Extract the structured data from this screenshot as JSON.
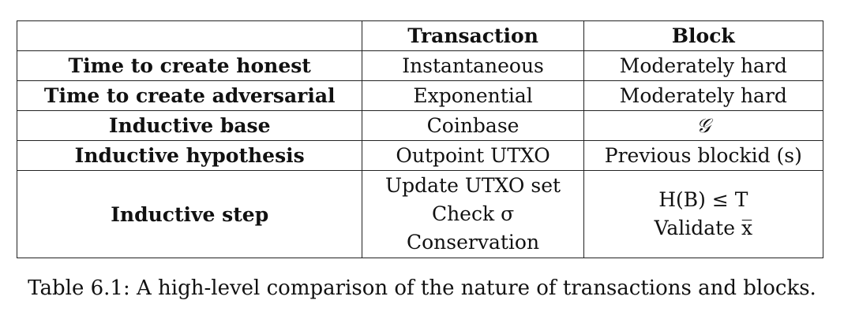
{
  "table": {
    "headers": [
      "",
      "Transaction",
      "Block"
    ],
    "rows": [
      {
        "label": "Time to create honest",
        "transaction": [
          "Instantaneous"
        ],
        "block": [
          "Moderately hard"
        ]
      },
      {
        "label": "Time to create adversarial",
        "transaction": [
          "Exponential"
        ],
        "block": [
          "Moderately hard"
        ]
      },
      {
        "label": "Inductive base",
        "transaction": [
          "Coinbase"
        ],
        "block": [
          "𝒢"
        ]
      },
      {
        "label": "Inductive hypothesis",
        "transaction": [
          "Outpoint UTXO"
        ],
        "block": [
          "Previous blockid (s)"
        ]
      },
      {
        "label": "Inductive step",
        "transaction": [
          "Update UTXO set",
          "Check σ",
          "Conservation"
        ],
        "block": [
          "H(B) ≤ T",
          "Validate x̅"
        ]
      }
    ]
  },
  "caption": "Table 6.1: A high-level comparison of the nature of transactions and blocks."
}
